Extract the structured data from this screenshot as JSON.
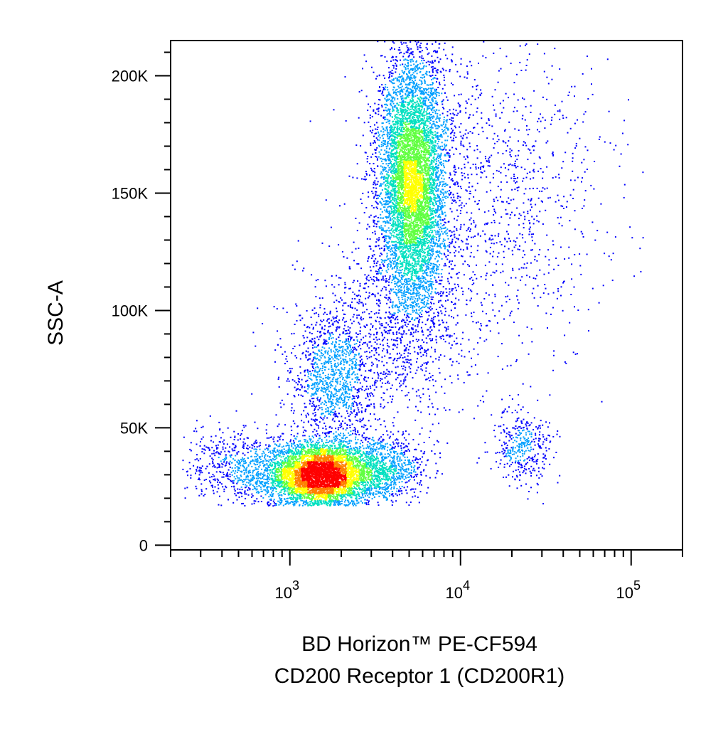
{
  "chart_data": {
    "type": "scatter",
    "subtype": "flow-cytometry-density-dot-plot",
    "xlabel_lines": [
      "BD Horizon™ PE-CF594",
      "CD200 Receptor 1 (CD200R1)"
    ],
    "ylabel": "SSC-A",
    "x_scale": "log",
    "y_scale": "linear",
    "xlim": [
      200,
      200000
    ],
    "ylim": [
      -2000,
      215000
    ],
    "x_ticks": [
      {
        "base": "10",
        "exp": "3",
        "value": 1000
      },
      {
        "base": "10",
        "exp": "4",
        "value": 10000
      },
      {
        "base": "10",
        "exp": "5",
        "value": 100000
      }
    ],
    "y_ticks": [
      {
        "label": "0",
        "value": 0
      },
      {
        "label": "50K",
        "value": 50000
      },
      {
        "label": "100K",
        "value": 100000
      },
      {
        "label": "150K",
        "value": 150000
      },
      {
        "label": "200K",
        "value": 200000
      }
    ],
    "density_colors": [
      "#0000ff",
      "#00a0ff",
      "#00e0c0",
      "#60ff40",
      "#ffff00",
      "#ff8000",
      "#ff0000"
    ],
    "populations": [
      {
        "x_median": 1500,
        "y_mean": 30000,
        "log_sd": 0.15,
        "y_sd": 7000,
        "count": 5200
      },
      {
        "x_median": 5200,
        "y_mean": 155000,
        "log_sd": 0.1,
        "y_sd": 27000,
        "count": 6500
      },
      {
        "x_median": 1800,
        "y_mean": 70000,
        "log_sd": 0.13,
        "y_sd": 15000,
        "count": 1200
      },
      {
        "x_median": 23000,
        "y_mean": 42000,
        "log_sd": 0.09,
        "y_sd": 8000,
        "count": 380
      },
      {
        "x_median": 550,
        "y_mean": 33000,
        "log_sd": 0.18,
        "y_sd": 8000,
        "count": 700
      },
      {
        "x_median": 3500,
        "y_mean": 33000,
        "log_sd": 0.12,
        "y_sd": 7000,
        "count": 900
      },
      {
        "x_median": 15000,
        "y_mean": 150000,
        "log_sd": 0.35,
        "y_sd": 35000,
        "count": 1200
      },
      {
        "x_median": 4000,
        "y_mean": 95000,
        "log_sd": 0.25,
        "y_sd": 20000,
        "count": 900
      }
    ],
    "grid": false,
    "legend": "none"
  }
}
